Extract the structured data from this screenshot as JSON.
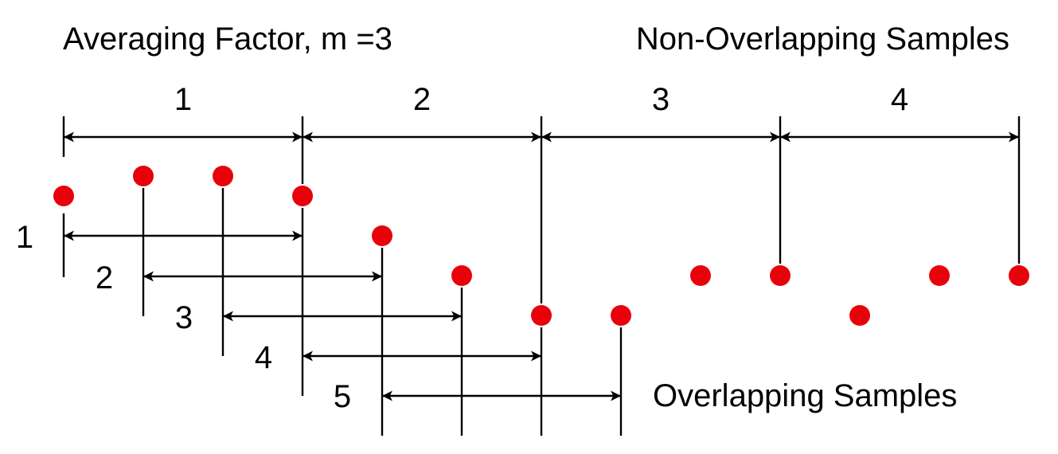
{
  "diagram": {
    "averaging_title": "Averaging Factor, m =3",
    "non_overlapping_title": "Non-Overlapping Samples",
    "overlapping_title": "Overlapping Samples",
    "non_overlapping_labels": [
      "1",
      "2",
      "3",
      "4"
    ],
    "overlapping_labels": [
      "1",
      "2",
      "3",
      "4",
      "5"
    ],
    "averaging_factor_m": 3,
    "sample_count": 13,
    "sample_levels": [
      1,
      0,
      0,
      1,
      2,
      3,
      4,
      4,
      3,
      3,
      4,
      3,
      3
    ],
    "dot_color": "#e8000b",
    "line_color": "#000000"
  }
}
